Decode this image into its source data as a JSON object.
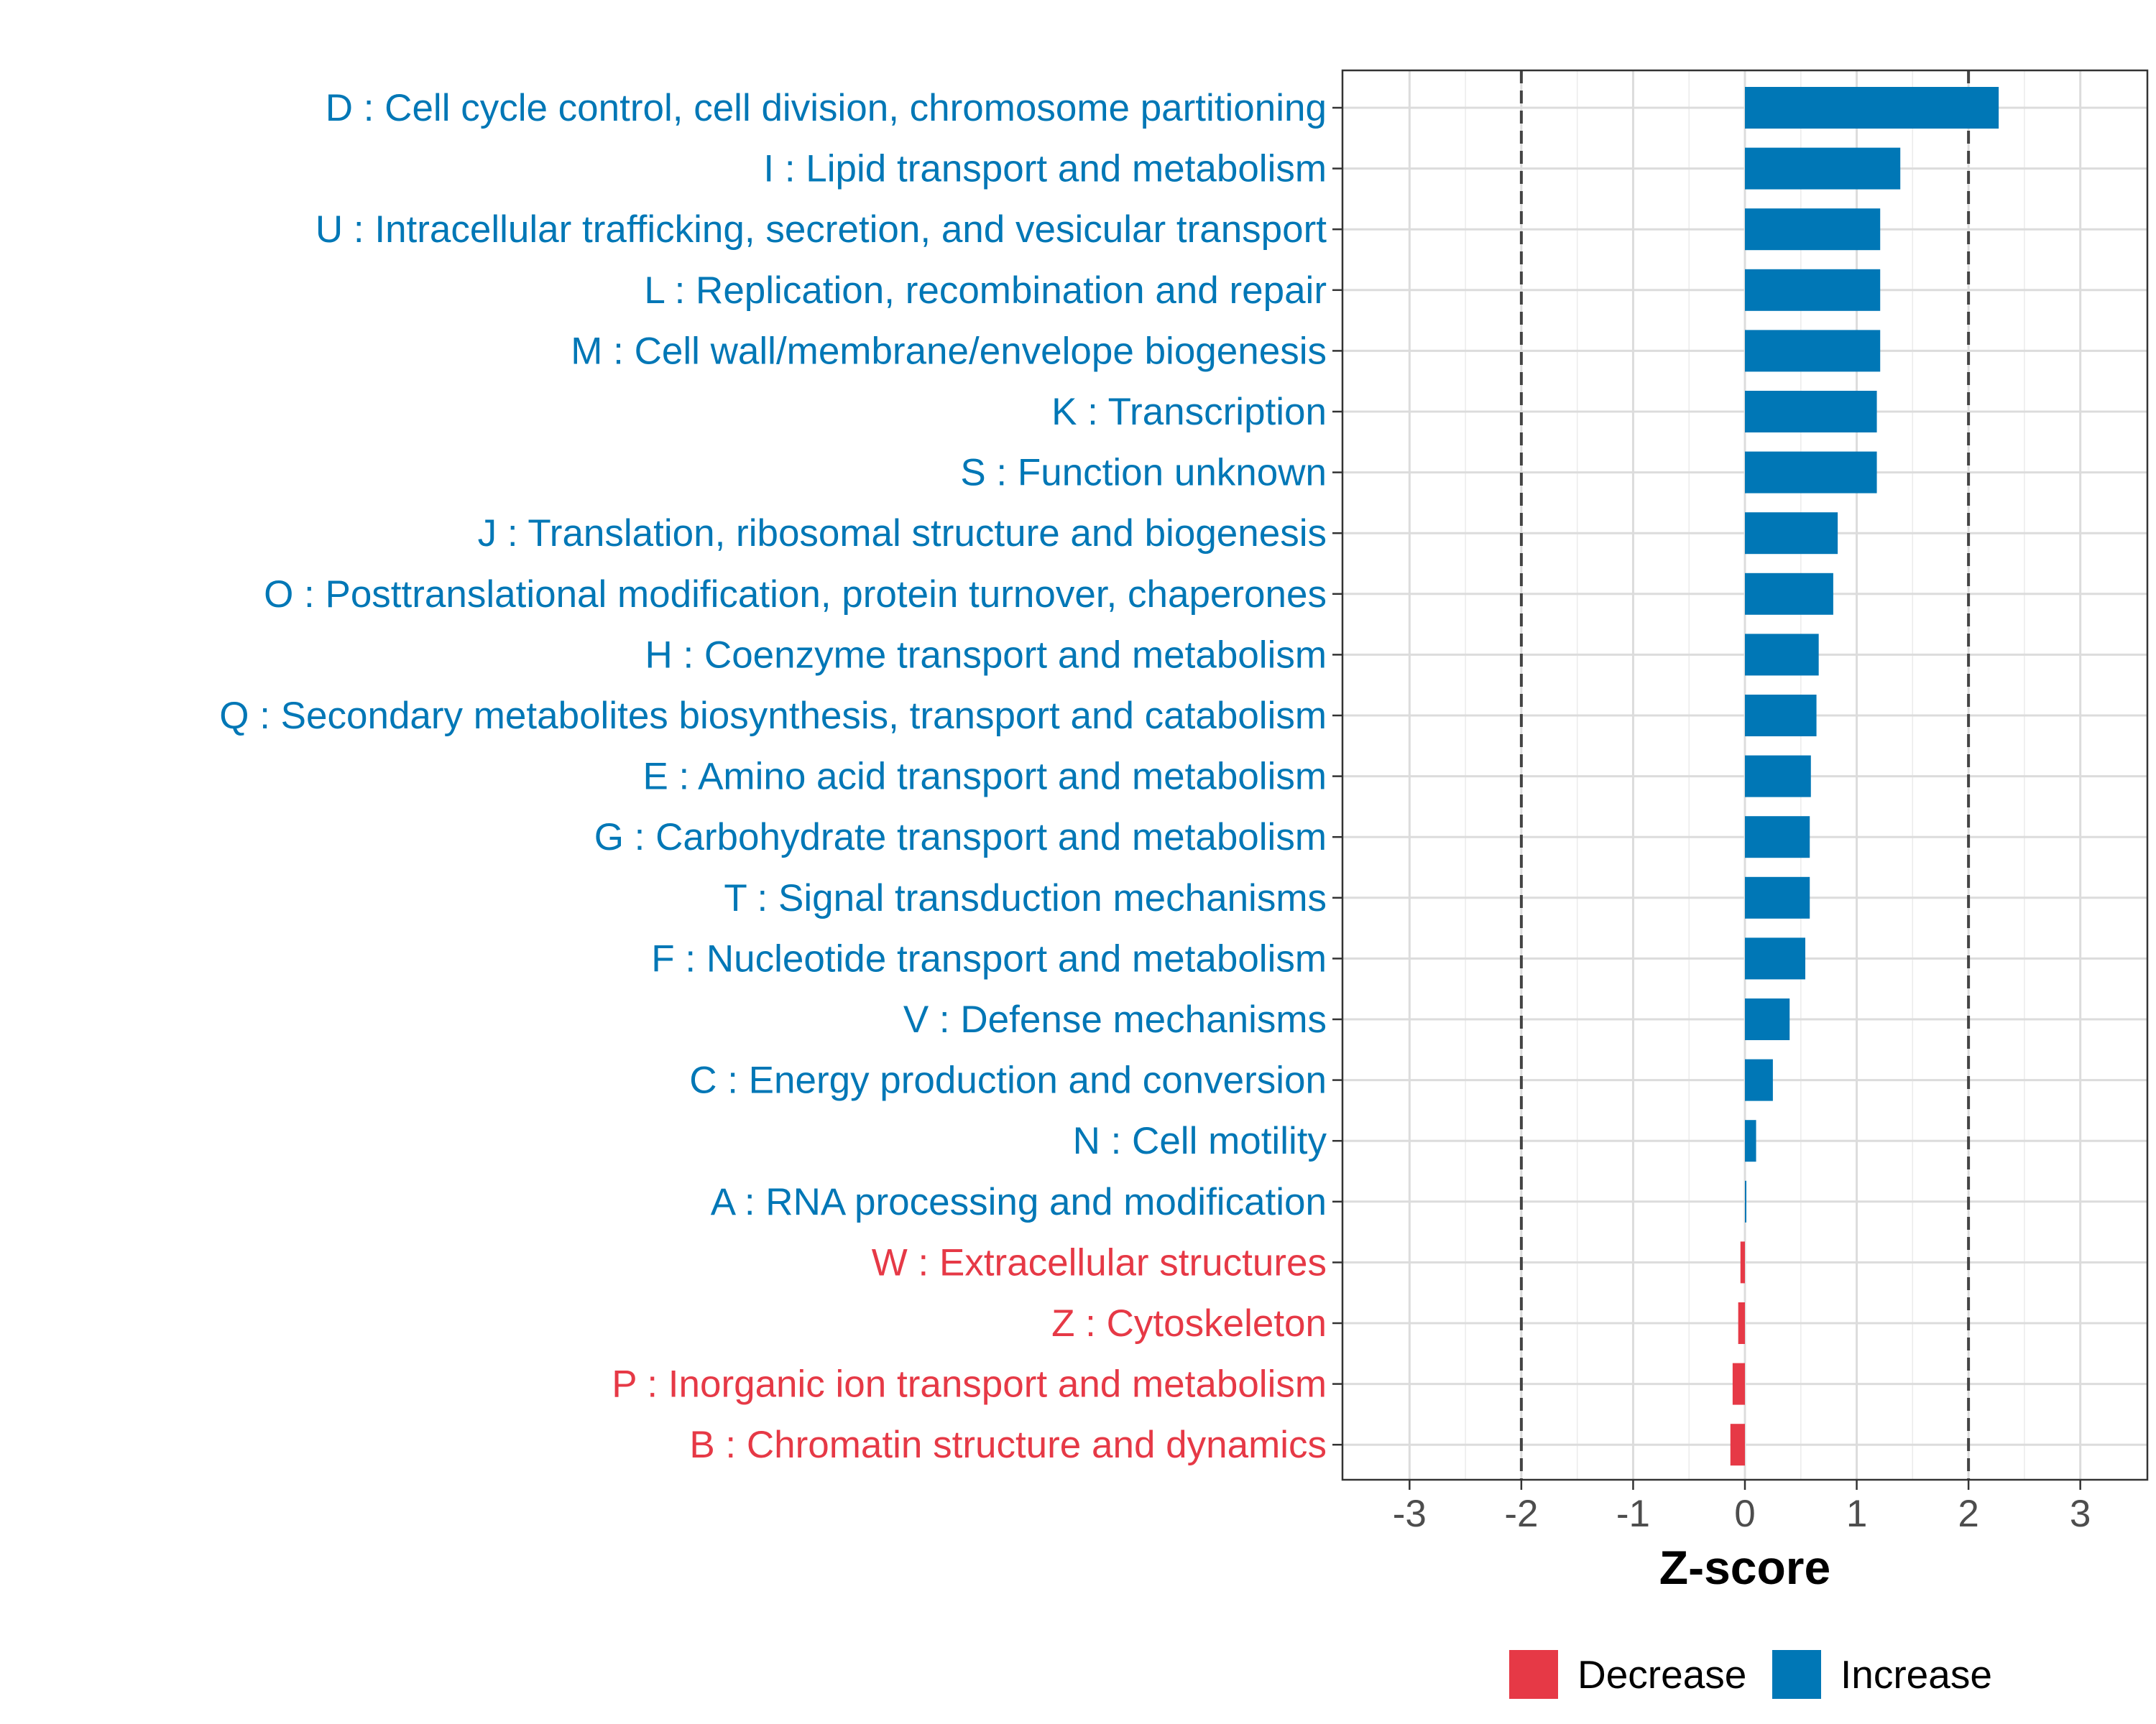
{
  "chart_data": {
    "type": "bar",
    "orientation": "horizontal",
    "xlabel": "Z-score",
    "xlim": [
      -3.6,
      3.6
    ],
    "xticks": [
      -3,
      -2,
      -1,
      0,
      1,
      2,
      3
    ],
    "xtick_labels": [
      "-3",
      "-2",
      "-1",
      "0",
      "1",
      "2",
      "3"
    ],
    "threshold_lines": [
      -2,
      2
    ],
    "grid": true,
    "colors": {
      "Increase": "#0077b6",
      "Decrease": "#e63946"
    },
    "legend": {
      "position": "bottom",
      "entries": [
        {
          "name": "Decrease",
          "color": "#e63946"
        },
        {
          "name": "Increase",
          "color": "#0077b6"
        }
      ]
    },
    "categories": [
      "D : Cell cycle control, cell division, chromosome partitioning",
      "I : Lipid transport and metabolism",
      "U : Intracellular trafficking, secretion, and vesicular transport",
      "L : Replication, recombination and repair",
      "M : Cell wall/membrane/envelope biogenesis",
      "K : Transcription",
      "S : Function unknown",
      "J : Translation, ribosomal structure and biogenesis",
      "O : Posttranslational modification, protein turnover, chaperones",
      "H : Coenzyme transport and metabolism",
      "Q : Secondary metabolites biosynthesis, transport and catabolism",
      "E : Amino acid transport and metabolism",
      "G : Carbohydrate transport and metabolism",
      "T : Signal transduction mechanisms",
      "F : Nucleotide transport and metabolism",
      "V : Defense mechanisms",
      "C : Energy production and conversion",
      "N : Cell motility",
      "A : RNA processing and modification",
      "W : Extracellular structures",
      "Z : Cytoskeleton",
      "P : Inorganic ion transport and metabolism",
      "B : Chromatin structure and dynamics"
    ],
    "values": [
      2.27,
      1.39,
      1.21,
      1.21,
      1.21,
      1.18,
      1.18,
      0.83,
      0.79,
      0.66,
      0.64,
      0.59,
      0.58,
      0.58,
      0.54,
      0.4,
      0.25,
      0.1,
      0.01,
      -0.04,
      -0.06,
      -0.11,
      -0.13
    ],
    "groups": [
      "Increase",
      "Increase",
      "Increase",
      "Increase",
      "Increase",
      "Increase",
      "Increase",
      "Increase",
      "Increase",
      "Increase",
      "Increase",
      "Increase",
      "Increase",
      "Increase",
      "Increase",
      "Increase",
      "Increase",
      "Increase",
      "Increase",
      "Decrease",
      "Decrease",
      "Decrease",
      "Decrease"
    ]
  }
}
